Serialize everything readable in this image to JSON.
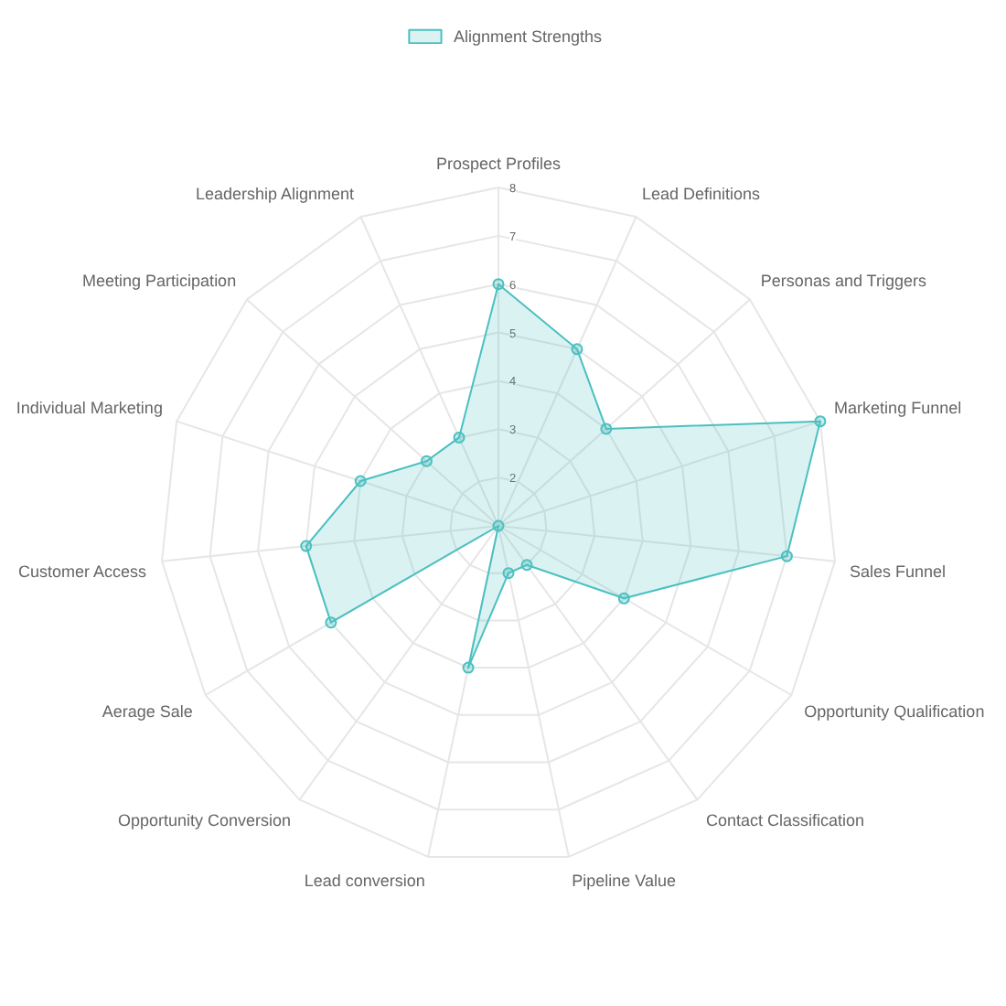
{
  "chart_data": {
    "type": "radar",
    "categories": [
      "Prospect Profiles",
      "Lead Definitions",
      "Personas and Triggers",
      "Marketing Funnel",
      "Sales Funnel",
      "Opportunity Qualification",
      "Contact Classification",
      "Pipeline Value",
      "Lead conversion",
      "Opportunity Conversion",
      "Aerage Sale",
      "Customer Access",
      "Individual Marketing",
      "Meeting Participation",
      "Leadership Alignment"
    ],
    "series": [
      {
        "name": "Alignment Strengths",
        "color": "#4bc0c0",
        "values": [
          6,
          5,
          4,
          8,
          7,
          4,
          2,
          2,
          4,
          1,
          5,
          5,
          4,
          3,
          3
        ]
      }
    ],
    "ylim": [
      1,
      8
    ],
    "yticks": [
      2,
      3,
      4,
      5,
      6,
      7,
      8
    ],
    "grid": true,
    "legend": "top",
    "marker": "circle"
  }
}
